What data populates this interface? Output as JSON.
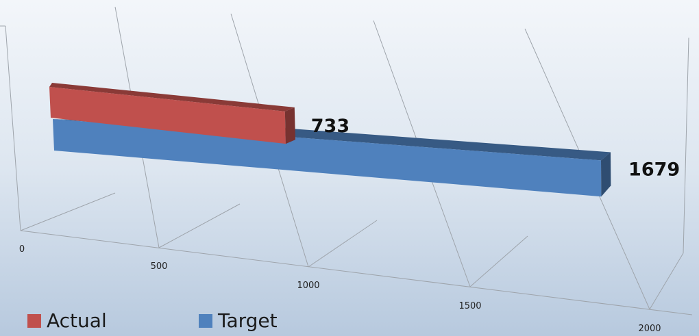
{
  "chart_data": {
    "type": "bar",
    "orientation": "horizontal",
    "three_d": true,
    "title": "",
    "xlabel": "",
    "ylabel": "",
    "xlim": [
      0,
      2000
    ],
    "ticks": [
      "0",
      "500",
      "1000",
      "1500",
      "2000"
    ],
    "grid": true,
    "legend_position": "bottom-left",
    "series": [
      {
        "name": "Actual",
        "value": 733,
        "label": "733",
        "color": "#c0504d"
      },
      {
        "name": "Target",
        "value": 1679,
        "label": "1679",
        "color": "#4f81bd"
      }
    ]
  }
}
